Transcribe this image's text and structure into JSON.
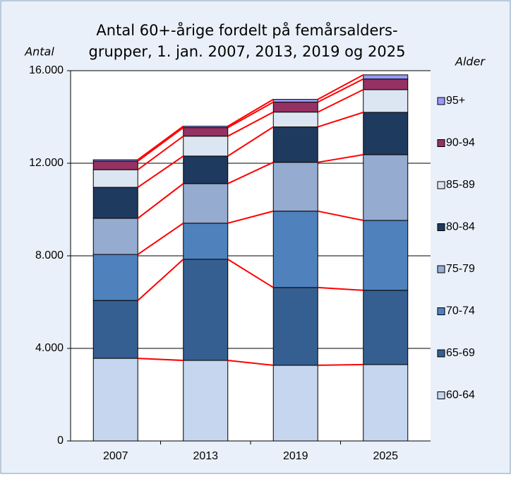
{
  "chart_data": {
    "type": "stacked_bar",
    "title": [
      "Antal 60+-årige fordelt på femårsalders-",
      "grupper, 1. jan. 2007, 2013, 2019 og 2025"
    ],
    "y_label": "Antal",
    "legend_title": "Alder",
    "categories": [
      "2007",
      "2013",
      "2019",
      "2025"
    ],
    "series": [
      {
        "name": "60-64",
        "color": "#c6d6ee",
        "values": [
          3570,
          3480,
          3270,
          3300
        ]
      },
      {
        "name": "65-69",
        "color": "#365f91",
        "values": [
          2500,
          4370,
          3360,
          3210
        ]
      },
      {
        "name": "70-74",
        "color": "#4f81bd",
        "values": [
          1990,
          1560,
          3300,
          3020
        ]
      },
      {
        "name": "75-79",
        "color": "#95abd0",
        "values": [
          1560,
          1710,
          2110,
          2840
        ]
      },
      {
        "name": "80-84",
        "color": "#1f3a5f",
        "values": [
          1340,
          1190,
          1530,
          1830
        ]
      },
      {
        "name": "85-89",
        "color": "#dce6f2",
        "values": [
          760,
          860,
          640,
          980
        ]
      },
      {
        "name": "90-94",
        "color": "#953163",
        "values": [
          370,
          370,
          430,
          460
        ]
      },
      {
        "name": "95+",
        "color": "#9999ff",
        "values": [
          60,
          60,
          120,
          180
        ]
      }
    ],
    "connector_color": "#ff0000",
    "ylim": [
      0,
      16000
    ],
    "yticks": [
      0,
      {
        "value": 4000,
        "label": "4.000"
      },
      {
        "value": 8000,
        "label": "8.000"
      },
      {
        "value": 12000,
        "label": "12.000"
      },
      {
        "value": 16000,
        "label": "16.000"
      }
    ],
    "grid": true,
    "legend_position": "right"
  }
}
